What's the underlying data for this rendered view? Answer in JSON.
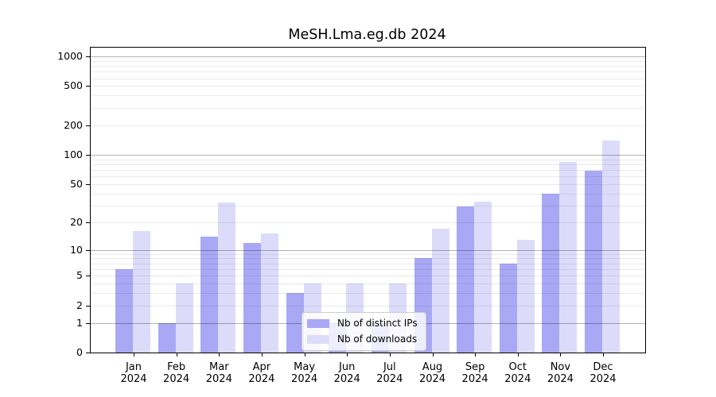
{
  "title": "MeSH.Lma.eg.db 2024",
  "chart_data": {
    "type": "bar",
    "title": "MeSH.Lma.eg.db 2024",
    "year_label": "2024",
    "categories": [
      "Jan",
      "Feb",
      "Mar",
      "Apr",
      "May",
      "Jun",
      "Jul",
      "Aug",
      "Sep",
      "Oct",
      "Nov",
      "Dec"
    ],
    "series": [
      {
        "name": "Nb of distinct IPs",
        "color": "#a8a8f5",
        "values": [
          6,
          1,
          14,
          12,
          3,
          1,
          1,
          8,
          29,
          7,
          40,
          68
        ]
      },
      {
        "name": "Nb of downloads",
        "color": "#dcdcfa",
        "values": [
          16,
          4,
          32,
          15,
          4,
          4,
          4,
          17,
          33,
          13,
          85,
          140
        ]
      }
    ],
    "y_ticks": [
      0,
      1,
      2,
      5,
      10,
      20,
      50,
      100,
      200,
      500,
      1000
    ],
    "y_scale": "log10(value+1)",
    "ylim": [
      0,
      1240
    ],
    "grid": {
      "major_at": [
        1,
        10,
        100,
        1000
      ],
      "minor": "2-9 per decade"
    },
    "legend_position": "inside, lower center-right"
  },
  "colors": {
    "bar_distinct_ips": "#a8a8f5",
    "bar_downloads": "#dcdcfa",
    "axis": "#000000",
    "grid_major": "rgba(0,0,0,0.30)",
    "grid_minor": "rgba(0,0,0,0.08)",
    "legend_bg": "rgba(255,255,255,0.8)",
    "legend_border": "#cccccc"
  }
}
